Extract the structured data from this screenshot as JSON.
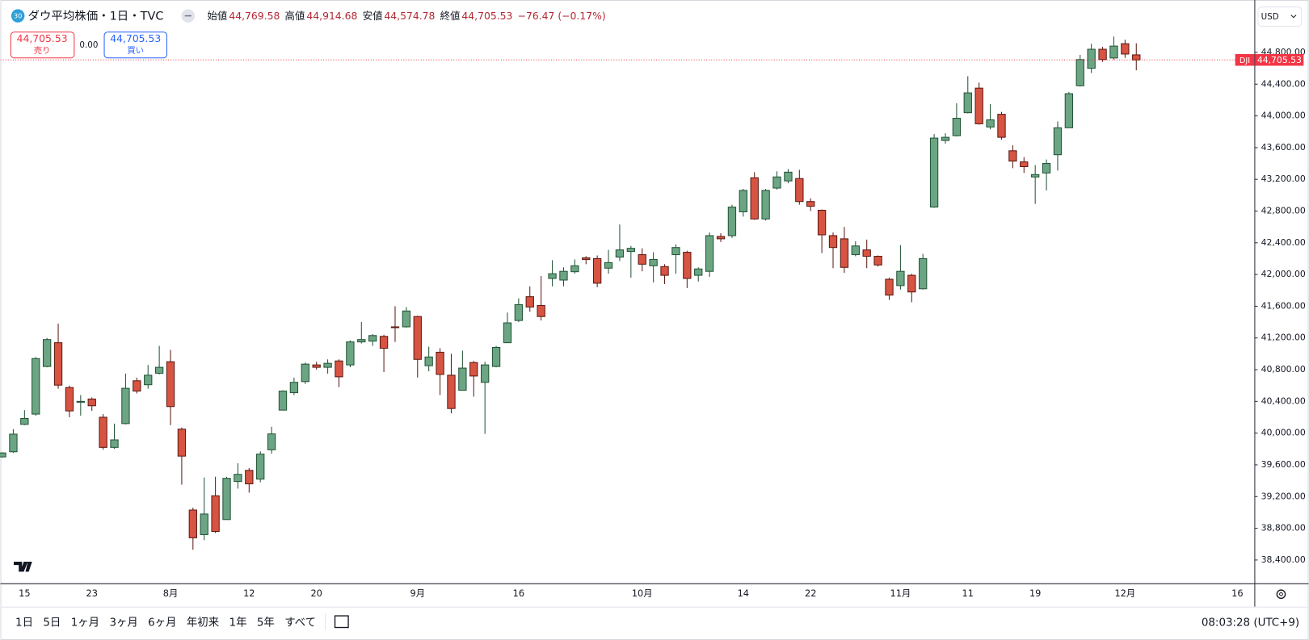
{
  "header": {
    "badge": "30",
    "title": "ダウ平均株価・1日・TVC",
    "ohlc": [
      {
        "label": "始値",
        "value": "44,769.58"
      },
      {
        "label": "高値",
        "value": "44,914.68"
      },
      {
        "label": "安値",
        "value": "44,574.78"
      },
      {
        "label": "終値",
        "value": "44,705.53"
      }
    ],
    "change": "−76.47 (−0.17%)"
  },
  "trade": {
    "sell_price": "44,705.53",
    "sell_label": "売り",
    "spread": "0.00",
    "buy_price": "44,705.53",
    "buy_label": "買い"
  },
  "currency": "USD",
  "toolbar": {
    "ranges": [
      "1日",
      "5日",
      "1ヶ月",
      "3ヶ月",
      "6ヶ月",
      "年初来",
      "1年",
      "5年",
      "すべて"
    ],
    "clock": "08:03:28 (UTC+9)"
  },
  "chart_data": {
    "type": "candlestick",
    "symbol": "DJI",
    "last_price": {
      "value": 44705.53,
      "label": "44,705.53"
    },
    "up_color": "#6ba583",
    "up_border": "#225437",
    "down_color": "#d75442",
    "down_border": "#5b1a13",
    "ylim": [
      38106,
      45419
    ],
    "yticks": [
      {
        "value": 38400,
        "label": "38,400.00"
      },
      {
        "value": 38800,
        "label": "38,800.00"
      },
      {
        "value": 39200,
        "label": "39,200.00"
      },
      {
        "value": 39600,
        "label": "39,600.00"
      },
      {
        "value": 40000,
        "label": "40,000.00"
      },
      {
        "value": 40400,
        "label": "40,400.00"
      },
      {
        "value": 40800,
        "label": "40,800.00"
      },
      {
        "value": 41200,
        "label": "41,200.00"
      },
      {
        "value": 41600,
        "label": "41,600.00"
      },
      {
        "value": 42000,
        "label": "42,000.00"
      },
      {
        "value": 42400,
        "label": "42,400.00"
      },
      {
        "value": 42800,
        "label": "42,800.00"
      },
      {
        "value": 43200,
        "label": "43,200.00"
      },
      {
        "value": 43600,
        "label": "43,600.00"
      },
      {
        "value": 44000,
        "label": "44,000.00"
      },
      {
        "value": 44400,
        "label": "44,400.00"
      },
      {
        "value": 44800,
        "label": "44,800.00"
      }
    ],
    "categories": [
      null,
      null,
      "15",
      null,
      null,
      null,
      null,
      null,
      "23",
      null,
      null,
      null,
      null,
      null,
      null,
      "8月",
      null,
      null,
      null,
      null,
      null,
      null,
      "12",
      null,
      null,
      null,
      null,
      null,
      "20",
      null,
      null,
      null,
      null,
      null,
      null,
      null,
      null,
      "9月",
      null,
      null,
      null,
      null,
      null,
      null,
      null,
      null,
      "16",
      null,
      null,
      null,
      null,
      null,
      null,
      null,
      null,
      null,
      null,
      "10月",
      null,
      null,
      null,
      null,
      null,
      null,
      null,
      null,
      "14",
      null,
      null,
      null,
      null,
      null,
      "22",
      null,
      null,
      null,
      null,
      null,
      null,
      null,
      "11月",
      null,
      null,
      null,
      null,
      null,
      "11",
      null,
      null,
      null,
      null,
      null,
      "19",
      null,
      null,
      null,
      null,
      null,
      null,
      null,
      "12月",
      null,
      null,
      null,
      null,
      null,
      null,
      null,
      null,
      null,
      "16"
    ],
    "open": [
      39700,
      39765,
      40110,
      40240,
      40840,
      41140,
      40575,
      40390,
      40430,
      40200,
      39820,
      40120,
      40660,
      40610,
      40755,
      40900,
      40050,
      39030,
      38720,
      39210,
      38910,
      39390,
      39530,
      39420,
      39790,
      40290,
      40510,
      40650,
      40860,
      40830,
      40910,
      40860,
      41150,
      41160,
      41220,
      41340,
      41340,
      41470,
      40850,
      41020,
      40730,
      40540,
      40890,
      40640,
      40840,
      41140,
      41420,
      41720,
      41610,
      41950,
      41930,
      42035,
      42210,
      42200,
      42080,
      42220,
      42290,
      42250,
      42110,
      42100,
      42250,
      42280,
      41990,
      42040,
      42480,
      42490,
      42790,
      43220,
      42700,
      43090,
      43180,
      43210,
      42920,
      42810,
      42490,
      42450,
      42250,
      42310,
      42230,
      41940,
      41860,
      41990,
      41820,
      42850,
      43690,
      43750,
      44040,
      44350,
      43860,
      44020,
      43560,
      43420,
      43230,
      43280,
      43510,
      43850,
      44380,
      44600,
      44840,
      44730,
      44910,
      44769.58,
      null,
      null,
      null,
      null,
      null,
      null,
      null,
      null,
      null
    ],
    "high": [
      39760,
      40050,
      40290,
      40960,
      41200,
      41380,
      40600,
      40480,
      40450,
      40240,
      40120,
      40750,
      40700,
      40860,
      41100,
      41050,
      40070,
      39060,
      39440,
      39450,
      39450,
      39620,
      39560,
      39770,
      40080,
      40540,
      40700,
      40890,
      40900,
      40930,
      40930,
      41170,
      41400,
      41250,
      41240,
      41600,
      41590,
      41480,
      41090,
      41070,
      41000,
      41040,
      40910,
      40900,
      41100,
      41520,
      41700,
      41850,
      41980,
      42180,
      42090,
      42190,
      42230,
      42240,
      42310,
      42630,
      42360,
      42330,
      42280,
      42130,
      42380,
      42300,
      42090,
      42530,
      42520,
      42880,
      43080,
      43290,
      43080,
      43300,
      43330,
      43320,
      42960,
      42820,
      42530,
      42600,
      42420,
      42440,
      42240,
      41960,
      42370,
      42010,
      42260,
      43770,
      43780,
      44160,
      44500,
      44420,
      44150,
      44050,
      43630,
      43480,
      43380,
      43450,
      43930,
      44300,
      44770,
      44910,
      44870,
      45000,
      44960,
      44914.68,
      null,
      null,
      null,
      null,
      null,
      null,
      null,
      null,
      null
    ],
    "low": [
      39690,
      39750,
      40100,
      40220,
      40830,
      40560,
      40200,
      40220,
      40280,
      39790,
      39800,
      40110,
      40500,
      40560,
      40740,
      40100,
      39350,
      38530,
      38650,
      38740,
      38910,
      39300,
      39250,
      39380,
      39740,
      40290,
      40480,
      40620,
      40800,
      40750,
      40580,
      40830,
      41130,
      41100,
      40770,
      41150,
      41330,
      40700,
      40780,
      40480,
      40250,
      40540,
      40460,
      39990,
      40830,
      41140,
      41400,
      41530,
      41420,
      41850,
      41850,
      42010,
      42130,
      41840,
      42010,
      42170,
      41960,
      42040,
      41900,
      41880,
      42010,
      41830,
      41910,
      41970,
      42410,
      42460,
      42730,
      42690,
      42680,
      43070,
      43150,
      42880,
      42800,
      42270,
      42080,
      42020,
      42230,
      42080,
      42100,
      41680,
      41810,
      41650,
      41810,
      42840,
      43650,
      43740,
      44030,
      43890,
      43830,
      43700,
      43340,
      43280,
      42890,
      43060,
      43310,
      43850,
      44370,
      44540,
      44680,
      44710,
      44730,
      44574.78,
      null,
      null,
      null,
      null,
      null,
      null,
      null,
      null,
      null
    ],
    "close": [
      39750,
      39987,
      40185,
      40940,
      41180,
      40605,
      40280,
      40400,
      40345,
      39820,
      39915,
      40565,
      40530,
      40730,
      40830,
      40335,
      39710,
      38680,
      38980,
      38760,
      39430,
      39480,
      39360,
      39735,
      39990,
      40530,
      40640,
      40870,
      40830,
      40880,
      40710,
      41150,
      41180,
      41230,
      41070,
      41330,
      41540,
      40930,
      40960,
      40740,
      40310,
      40820,
      40720,
      40860,
      41080,
      41390,
      41620,
      41590,
      41470,
      42010,
      42040,
      42110,
      42190,
      41890,
      42150,
      42310,
      42330,
      42130,
      42190,
      41990,
      42340,
      41950,
      42070,
      42490,
      42450,
      42850,
      43060,
      42700,
      43060,
      43230,
      43290,
      42920,
      42860,
      42500,
      42340,
      42090,
      42360,
      42230,
      42120,
      41740,
      42040,
      41780,
      42200,
      43720,
      43730,
      43970,
      44290,
      43900,
      43950,
      43730,
      43430,
      43360,
      43260,
      43400,
      43850,
      44280,
      44710,
      44840,
      44710,
      44880,
      44780,
      44705.53,
      null,
      null,
      null,
      null,
      null,
      null,
      null,
      null,
      null
    ]
  }
}
